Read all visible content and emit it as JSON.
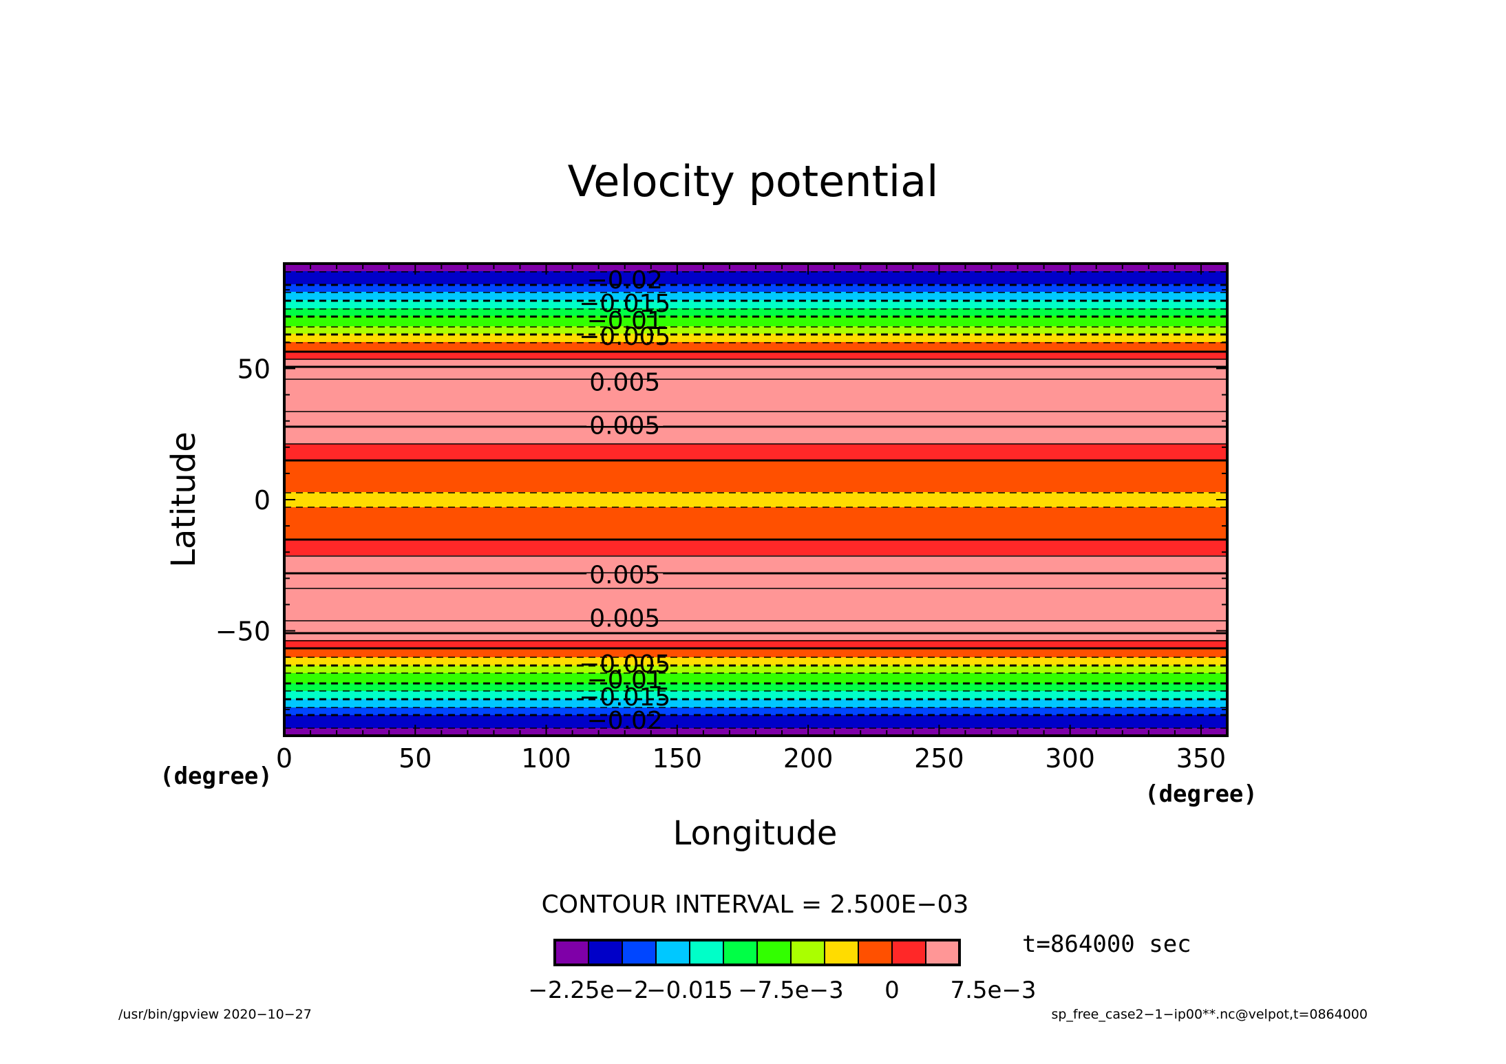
{
  "chart_data": {
    "type": "heatmap",
    "title": "Velocity potential",
    "xlabel": "Longitude",
    "ylabel": "Latitude",
    "x_unit": "(degree)",
    "y_unit": "(degree)",
    "xlim": [
      0,
      360
    ],
    "ylim": [
      -90,
      90
    ],
    "x_ticks": [
      "0",
      "50",
      "100",
      "150",
      "200",
      "250",
      "300",
      "350"
    ],
    "x_tick_values": [
      0,
      50,
      100,
      150,
      200,
      250,
      300,
      350
    ],
    "y_ticks": [
      "50",
      "0",
      "−50"
    ],
    "y_tick_values": [
      50,
      0,
      -50
    ],
    "field_profile": {
      "description_of_values": "zonally uniform field, value vs latitude (symmetric)",
      "lat": [
        90,
        84,
        82,
        78,
        74,
        70,
        66,
        62,
        58,
        55,
        52,
        50,
        45,
        35,
        28,
        20,
        14,
        0
      ],
      "value": [
        -0.0235,
        -0.0215,
        -0.02,
        -0.0165,
        -0.0135,
        -0.01,
        -0.0075,
        -0.004,
        -0.001,
        0.0012,
        0.004,
        0.0058,
        0.008,
        0.008,
        0.005,
        0.002,
        -0.0005,
        -0.003
      ]
    },
    "levels": [
      -0.0225,
      -0.02,
      -0.0175,
      -0.015,
      -0.0125,
      -0.01,
      -0.0075,
      -0.005,
      -0.0025,
      0,
      0.0025,
      0.005,
      0.0075
    ],
    "colors": [
      "#7f00a8",
      "#0000c8",
      "#0046ff",
      "#00c8ff",
      "#00ffc8",
      "#00ff46",
      "#32ff00",
      "#aaff00",
      "#ffdc00",
      "#ff5000",
      "#ff2828",
      "#ff9696"
    ],
    "contour_labels": [
      {
        "text": "−0.02",
        "lat": 84
      },
      {
        "text": "−0.015",
        "lat": 75
      },
      {
        "text": "−0.01",
        "lat": 68.5
      },
      {
        "text": "−0.005",
        "lat": 62.5
      },
      {
        "text": "0.005",
        "lat": 45
      },
      {
        "text": "0.005",
        "lat": 28.5
      },
      {
        "text": "0.005",
        "lat": -28.5
      },
      {
        "text": "0.005",
        "lat": -45
      },
      {
        "text": "−0.005",
        "lat": -62.5
      },
      {
        "text": "−0.01",
        "lat": -68.5
      },
      {
        "text": "−0.015",
        "lat": -75
      },
      {
        "text": "−0.02",
        "lat": -84
      }
    ],
    "contour_interval_label": "CONTOUR INTERVAL = 2.500E−03",
    "colorbar_tick_labels": [
      "−2.25e−2",
      "−0.015",
      "−7.5e−3",
      "0",
      "7.5e−3"
    ],
    "colorbar_tick_values": [
      -0.0225,
      -0.015,
      -0.0075,
      0,
      0.0075
    ],
    "colorbar_label_strings": [
      "−2.25e−2",
      "−0.015",
      "−7.5e−3",
      "0",
      "7.5e−3"
    ],
    "time_label": "t=864000 sec"
  },
  "footer": {
    "left": "/usr/bin/gpview   2020−10−27",
    "right": "sp_free_case2−1−ip00**.nc@velpot,t=0864000"
  }
}
